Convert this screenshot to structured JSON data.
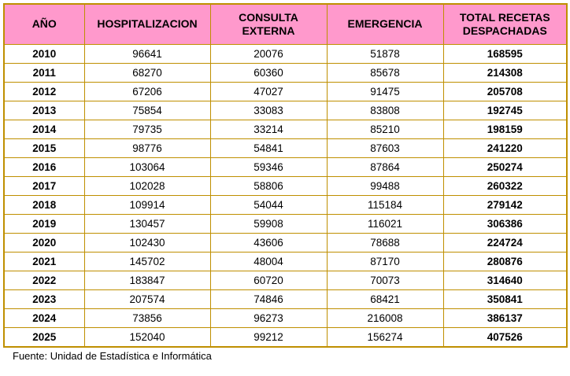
{
  "colors": {
    "header_bg": "#FF99CC",
    "border": "#BF8F00",
    "text": "#000000"
  },
  "table": {
    "headers": {
      "year": "AÑO",
      "hospitalizacion": "HOSPITALIZACION",
      "consulta_externa": "CONSULTA EXTERNA",
      "emergencia": "EMERGENCIA",
      "total": "TOTAL RECETAS DESPACHADAS"
    },
    "rows": [
      [
        "2010",
        "96641",
        "20076",
        "51878",
        "168595"
      ],
      [
        "2011",
        "68270",
        "60360",
        "85678",
        "214308"
      ],
      [
        "2012",
        "67206",
        "47027",
        "91475",
        "205708"
      ],
      [
        "2013",
        "75854",
        "33083",
        "83808",
        "192745"
      ],
      [
        "2014",
        "79735",
        "33214",
        "85210",
        "198159"
      ],
      [
        "2015",
        "98776",
        "54841",
        "87603",
        "241220"
      ],
      [
        "2016",
        "103064",
        "59346",
        "87864",
        "250274"
      ],
      [
        "2017",
        "102028",
        "58806",
        "99488",
        "260322"
      ],
      [
        "2018",
        "109914",
        "54044",
        "115184",
        "279142"
      ],
      [
        "2019",
        "130457",
        "59908",
        "116021",
        "306386"
      ],
      [
        "2020",
        "102430",
        "43606",
        "78688",
        "224724"
      ],
      [
        "2021",
        "145702",
        "48004",
        "87170",
        "280876"
      ],
      [
        "2022",
        "183847",
        "60720",
        "70073",
        "314640"
      ],
      [
        "2023",
        "207574",
        "74846",
        "68421",
        "350841"
      ],
      [
        "2024",
        "73856",
        "96273",
        "216008",
        "386137"
      ],
      [
        "2025",
        "152040",
        "99212",
        "156274",
        "407526"
      ]
    ]
  },
  "footer": {
    "source": "Fuente: Unidad de Estadística e Informática"
  }
}
